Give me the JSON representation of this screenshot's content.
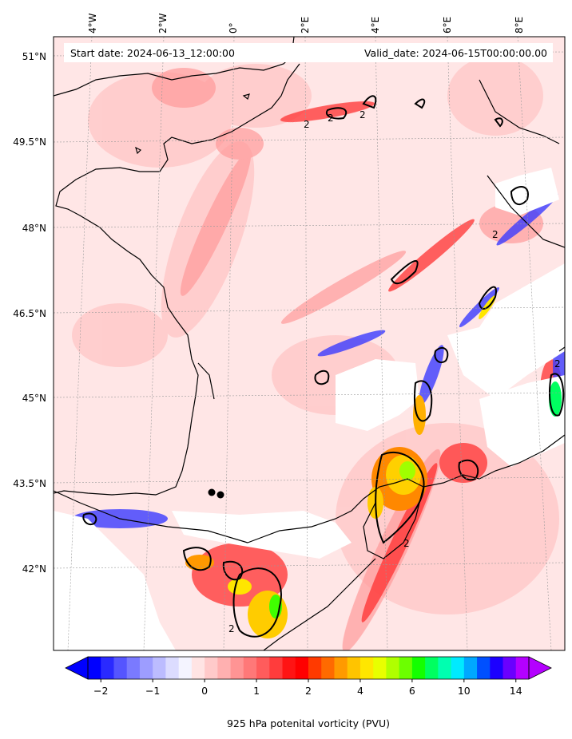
{
  "annotations": {
    "start_date": "Start date: 2024-06-13_12:00:00",
    "valid_date": "Valid_date: 2024-06-15T00:00:00.00"
  },
  "lon_labels": [
    "4°W",
    "2°W",
    "0°",
    "2°E",
    "4°E",
    "6°E",
    "8°E"
  ],
  "lat_labels": [
    "51°N",
    "49.5°N",
    "48°N",
    "46.5°N",
    "45°N",
    "43.5°N",
    "42°N"
  ],
  "contour_label": "2",
  "colorbar": {
    "title": "925 hPa potenital vorticity (PVU)",
    "tick_labels": [
      "−2",
      "−1",
      "0",
      "1",
      "2",
      "4",
      "6",
      "10",
      "14"
    ],
    "colors": [
      "#0000ff",
      "#2a2aff",
      "#5555ff",
      "#7a7aff",
      "#9d9dff",
      "#bcbcff",
      "#dcdcff",
      "#f4f4ff",
      "#ffe4e4",
      "#ffcaca",
      "#ffb0b0",
      "#ff9494",
      "#ff7878",
      "#ff5c5c",
      "#ff3c3c",
      "#ff1414",
      "#ff0000",
      "#ff3a00",
      "#ff6a00",
      "#ff9a00",
      "#ffc400",
      "#ffe600",
      "#e8ff00",
      "#b0ff00",
      "#6cff00",
      "#14ff00",
      "#00ff60",
      "#00ffb0",
      "#00eaff",
      "#00a8ff",
      "#0050ff",
      "#1c00ff",
      "#6a00ff",
      "#b400ff"
    ],
    "extend": "both"
  },
  "colors": {
    "background_field": "#ffe6e6",
    "axis": "#000000",
    "coastline": "#000000"
  }
}
